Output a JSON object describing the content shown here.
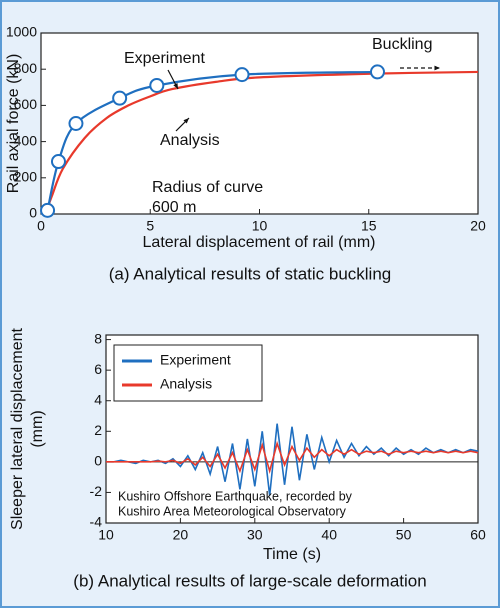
{
  "chart_data": [
    {
      "type": "line",
      "caption": "(a) Analytical results of static buckling",
      "xlabel": "Lateral displacement of rail (mm)",
      "ylabel": [
        "Rail axial force (kN)"
      ],
      "xlim": [
        0,
        20
      ],
      "xticks": [
        0,
        5,
        10,
        15,
        20
      ],
      "ylim": [
        0,
        1000
      ],
      "yticks": [
        0,
        200,
        400,
        600,
        800,
        1000
      ],
      "smooth": true,
      "annotations": [
        "Experiment",
        "Analysis",
        "Radius of curve",
        "600 m",
        "Buckling"
      ],
      "series": [
        {
          "name": "Analysis",
          "color": "#e8392b",
          "markers": false,
          "x": [
            0.2,
            0.5,
            1,
            2,
            3,
            4,
            5,
            6,
            8,
            10,
            15,
            20
          ],
          "values": [
            0,
            100,
            250,
            420,
            530,
            600,
            650,
            690,
            730,
            755,
            775,
            785
          ]
        },
        {
          "name": "Experiment",
          "color": "#1f6fc0",
          "markers": true,
          "x": [
            0.3,
            0.8,
            1.6,
            3.6,
            5.3,
            9.2,
            15.4
          ],
          "values": [
            20,
            290,
            500,
            640,
            710,
            770,
            785
          ]
        }
      ]
    },
    {
      "type": "line",
      "caption": "(b) Analytical results of large-scale deformation",
      "xlabel": "Time (s)",
      "ylabel": [
        "Sleeper lateral displacement",
        "(mm)"
      ],
      "xlim": [
        10,
        60
      ],
      "xticks": [
        10,
        20,
        30,
        40,
        50,
        60
      ],
      "ylim": [
        -4,
        8.3
      ],
      "yticks": [
        -4,
        -2,
        0,
        2,
        4,
        6,
        8
      ],
      "smooth": false,
      "legend": "upper left",
      "annotations": [
        "Kushiro Offshore Earthquake, recorded by",
        "Kushiro Area Meteorological Observatory"
      ],
      "x": [
        10,
        11,
        12,
        13,
        14,
        15,
        16,
        17,
        18,
        19,
        20,
        21,
        22,
        23,
        24,
        25,
        26,
        27,
        28,
        29,
        30,
        31,
        32,
        33,
        34,
        35,
        36,
        37,
        38,
        39,
        40,
        41,
        42,
        43,
        44,
        45,
        46,
        47,
        48,
        49,
        50,
        51,
        52,
        53,
        54,
        55,
        56,
        57,
        58,
        59,
        60
      ],
      "series": [
        {
          "name": "Experiment",
          "color": "#1f6fc0",
          "values": [
            0,
            0,
            0.1,
            0,
            -0.1,
            0.1,
            0,
            0.1,
            -0.1,
            0.2,
            -0.3,
            0.4,
            -0.5,
            0.6,
            -0.8,
            1.0,
            -1.3,
            1.2,
            -1.8,
            1.5,
            -1.6,
            2.0,
            -2.2,
            2.5,
            -1.5,
            2.3,
            -1.2,
            1.8,
            -0.5,
            1.6,
            0,
            1.4,
            0.3,
            1.2,
            0.4,
            1.0,
            0.5,
            0.9,
            0.4,
            0.9,
            0.5,
            0.8,
            0.5,
            0.9,
            0.6,
            0.8,
            0.6,
            0.8,
            0.6,
            0.8,
            0.7
          ]
        },
        {
          "name": "Analysis",
          "color": "#e8392b",
          "values": [
            0,
            0,
            0,
            0,
            0,
            0,
            0,
            0.05,
            0,
            0.1,
            -0.1,
            0.2,
            -0.2,
            0.3,
            -0.3,
            0.5,
            -0.4,
            0.6,
            -0.6,
            0.8,
            -0.5,
            1.1,
            -0.6,
            1.2,
            -0.2,
            1.0,
            0.1,
            0.9,
            0.3,
            0.8,
            0.4,
            0.8,
            0.5,
            0.8,
            0.5,
            0.7,
            0.6,
            0.7,
            0.5,
            0.7,
            0.6,
            0.7,
            0.6,
            0.7,
            0.6,
            0.7,
            0.6,
            0.7,
            0.6,
            0.7,
            0.6
          ]
        }
      ]
    }
  ]
}
